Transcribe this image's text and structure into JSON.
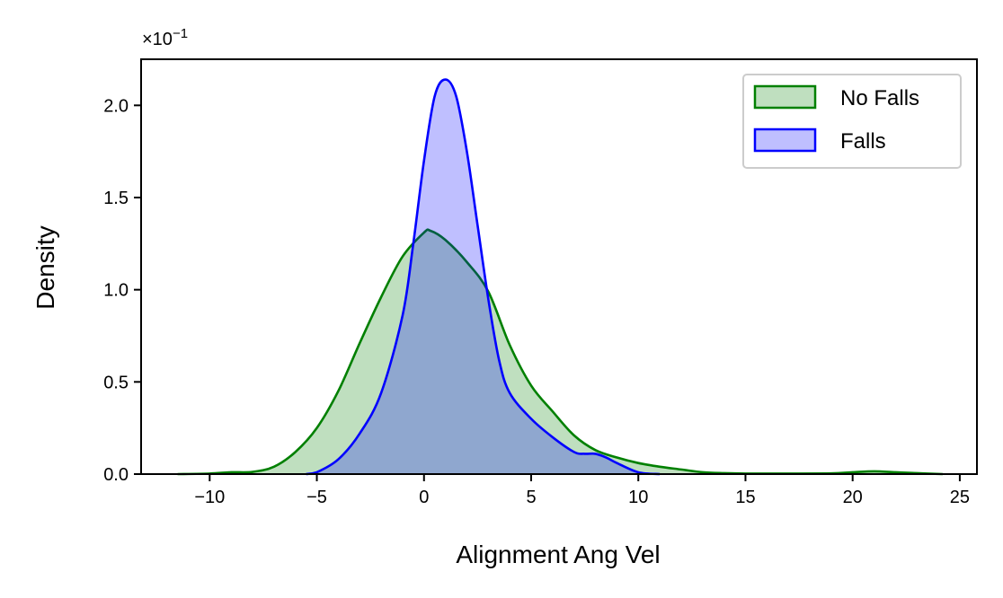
{
  "chart_data": {
    "type": "area",
    "xlabel": "Alignment Ang Vel",
    "ylabel": "Density",
    "y_multiplier": "×10",
    "y_multiplier_exp": "−1",
    "xlim": [
      -13.2,
      25.8
    ],
    "ylim": [
      0,
      2.25
    ],
    "x_ticks": [
      -10,
      -5,
      0,
      5,
      10,
      15,
      20,
      25
    ],
    "x_tick_labels": [
      "−10",
      "−5",
      "0",
      "5",
      "10",
      "15",
      "20",
      "25"
    ],
    "y_ticks": [
      0.0,
      0.5,
      1.0,
      1.5,
      2.0
    ],
    "y_tick_labels": [
      "0.0",
      "0.5",
      "1.0",
      "1.5",
      "2.0"
    ],
    "grid": false,
    "legend_position": "top-right",
    "series": [
      {
        "name": "No Falls",
        "line_color": "#008000",
        "fill_color": "#008000",
        "fill_opacity": 0.25,
        "x": [
          -11.5,
          -10,
          -9,
          -8,
          -7,
          -6,
          -5,
          -4,
          -3,
          -2,
          -1,
          0,
          0.3,
          1,
          2,
          3,
          4,
          5,
          6,
          7,
          8,
          9,
          10,
          11,
          12,
          13,
          14,
          15,
          17,
          19,
          20,
          21,
          22,
          23,
          24.2
        ],
        "y": [
          0.0,
          0.003,
          0.01,
          0.012,
          0.04,
          0.12,
          0.25,
          0.45,
          0.71,
          0.96,
          1.18,
          1.31,
          1.32,
          1.27,
          1.15,
          0.99,
          0.7,
          0.48,
          0.34,
          0.21,
          0.13,
          0.09,
          0.06,
          0.04,
          0.025,
          0.01,
          0.005,
          0.003,
          0.003,
          0.004,
          0.01,
          0.015,
          0.01,
          0.005,
          0.0
        ]
      },
      {
        "name": "Falls",
        "line_color": "#0000ff",
        "fill_color": "#0000ff",
        "fill_opacity": 0.25,
        "x": [
          -5.5,
          -5,
          -4,
          -3,
          -2,
          -1,
          -0.5,
          0,
          0.5,
          1,
          1.5,
          2,
          2.5,
          3,
          3.5,
          4,
          5,
          6,
          7,
          7.5,
          8,
          8.5,
          9,
          10,
          11
        ],
        "y": [
          0.0,
          0.01,
          0.08,
          0.22,
          0.44,
          0.86,
          1.25,
          1.7,
          2.05,
          2.14,
          2.05,
          1.75,
          1.35,
          0.95,
          0.62,
          0.44,
          0.3,
          0.2,
          0.12,
          0.11,
          0.11,
          0.09,
          0.06,
          0.01,
          0.0
        ]
      }
    ]
  }
}
